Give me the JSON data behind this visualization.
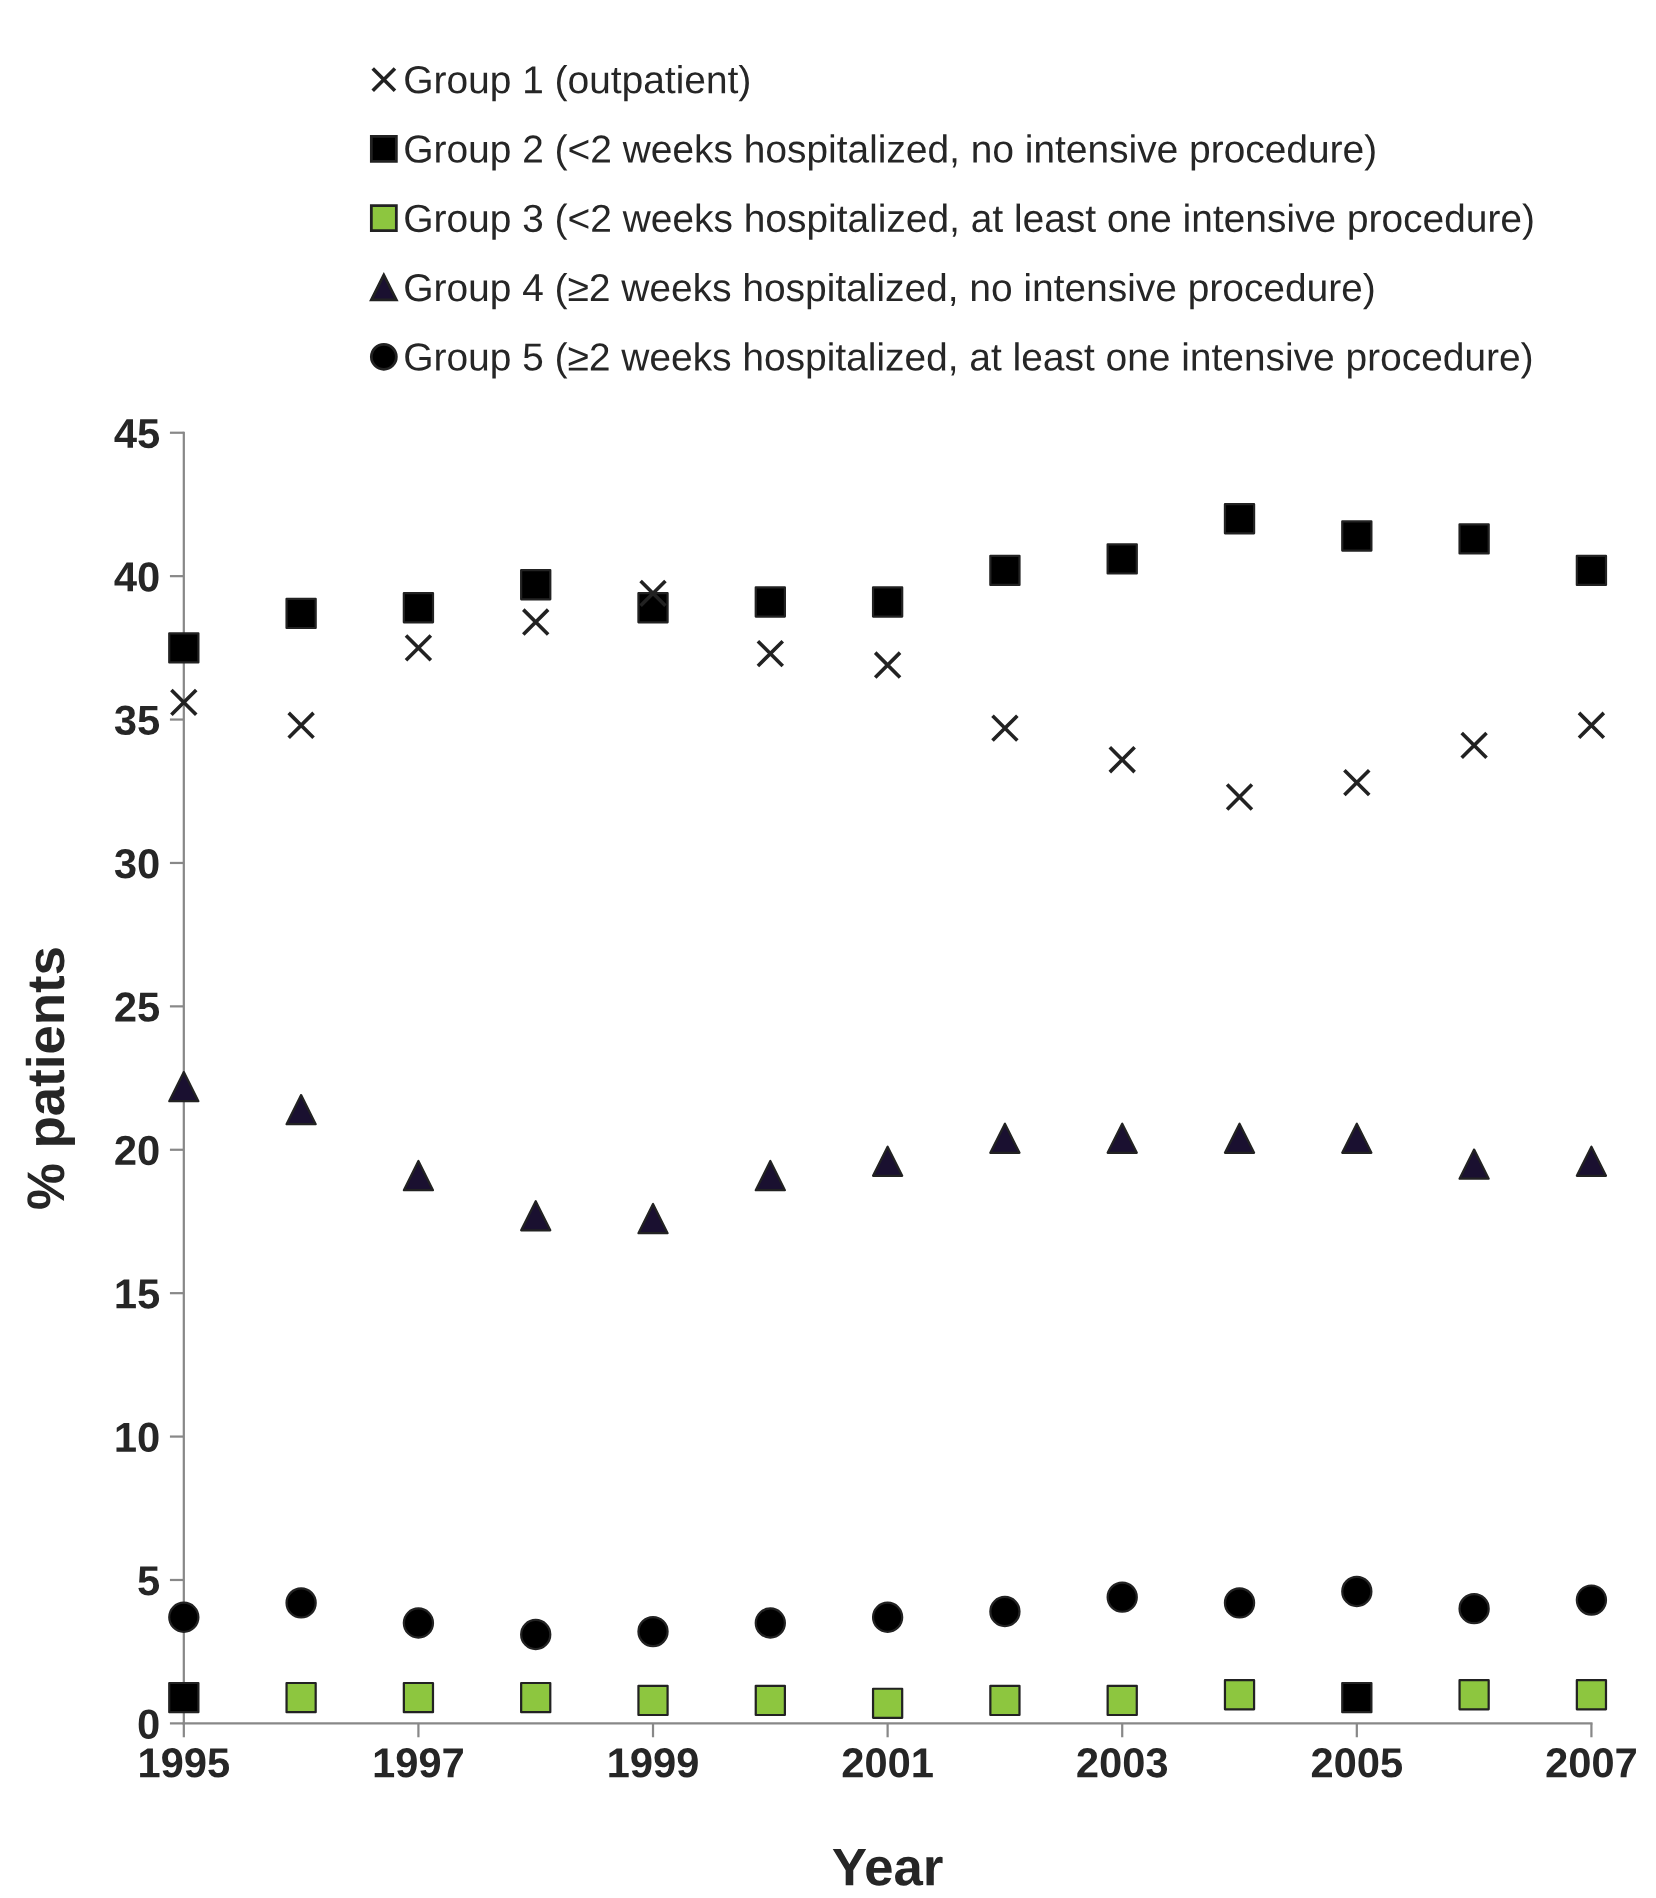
{
  "chart_data": {
    "type": "scatter",
    "xlabel": "Year",
    "ylabel": "% patients",
    "x": [
      1995,
      1996,
      1997,
      1998,
      1999,
      2000,
      2001,
      2002,
      2003,
      2004,
      2005,
      2006,
      2007
    ],
    "series": [
      {
        "name": "Group 1 (outpatient)",
        "color": "#222222",
        "marker": "cross",
        "values": [
          35.6,
          34.8,
          37.5,
          38.4,
          39.4,
          37.3,
          36.9,
          34.7,
          33.6,
          32.3,
          32.8,
          34.1,
          34.8
        ]
      },
      {
        "name": "Group 2 (<2 weeks hospitalized, no intensive procedure)",
        "color": "#000000",
        "marker": "square",
        "values": [
          37.5,
          38.7,
          38.9,
          39.7,
          38.9,
          39.1,
          39.1,
          40.2,
          40.6,
          42.0,
          41.4,
          41.3,
          40.2
        ]
      },
      {
        "name": "Group 3 (<2 weeks hospitalized, at least one intensive procedure)",
        "color": "#8dc63f",
        "colors": [
          "#000000",
          "#8dc63f",
          "#8dc63f",
          "#8dc63f",
          "#8dc63f",
          "#8dc63f",
          "#8dc63f",
          "#8dc63f",
          "#8dc63f",
          "#8dc63f",
          "#000000",
          "#8dc63f",
          "#8dc63f"
        ],
        "marker": "square",
        "values": [
          0.9,
          0.9,
          0.9,
          0.9,
          0.8,
          0.8,
          0.7,
          0.8,
          0.8,
          1.0,
          0.9,
          1.0,
          1.0
        ]
      },
      {
        "name": "Group 4 (≥2 weeks hospitalized, no intensive procedure)",
        "color": "#1a1030",
        "marker": "triangle",
        "values": [
          22.2,
          21.4,
          19.1,
          17.7,
          17.6,
          19.1,
          19.6,
          20.4,
          20.4,
          20.4,
          20.4,
          19.5,
          19.6
        ]
      },
      {
        "name": "Group 5 (≥2 weeks hospitalized, at least one intensive procedure)",
        "color": "#000000",
        "marker": "circle",
        "values": [
          3.7,
          4.2,
          3.5,
          3.1,
          3.2,
          3.5,
          3.7,
          3.9,
          4.4,
          4.2,
          4.6,
          4.0,
          4.3
        ]
      }
    ],
    "xlim": [
      1995,
      2007
    ],
    "xticks": [
      1995,
      1997,
      1999,
      2001,
      2003,
      2005,
      2007
    ],
    "ylim": [
      0,
      45
    ],
    "yticks": [
      0,
      5,
      10,
      15,
      20,
      25,
      30,
      35,
      40,
      45
    ],
    "grid": false,
    "legend": "top"
  }
}
